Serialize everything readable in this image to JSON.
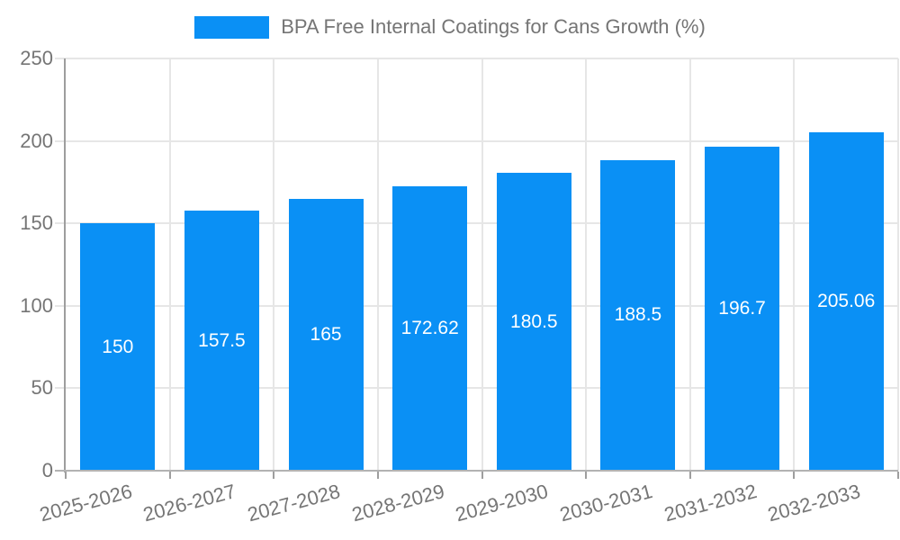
{
  "legend": {
    "label": "BPA Free Internal Coatings for Cans Growth (%)"
  },
  "chart_data": {
    "type": "bar",
    "title": "BPA Free Internal Coatings for Cans Growth (%)",
    "categories": [
      "2025-2026",
      "2026-2027",
      "2027-2028",
      "2028-2029",
      "2029-2030",
      "2030-2031",
      "2031-2032",
      "2032-2033"
    ],
    "values": [
      150,
      157.5,
      165,
      172.62,
      180.5,
      188.5,
      196.7,
      205.06
    ],
    "value_labels": [
      "150",
      "157.5",
      "165",
      "172.62",
      "180.5",
      "188.5",
      "196.7",
      "205.06"
    ],
    "xlabel": "",
    "ylabel": "",
    "ylim": [
      0,
      250
    ],
    "yticks": [
      0,
      50,
      100,
      150,
      200,
      250
    ],
    "grid": true,
    "legend_position": "top",
    "colors": {
      "bar": "#0a90f5",
      "value_label_text": "#ffffff",
      "axis_text": "#757575",
      "grid_line": "#e6e6e6",
      "axis_line": "#9e9e9e",
      "tick_mark": "#c9c9c9",
      "background": "#ffffff"
    }
  }
}
